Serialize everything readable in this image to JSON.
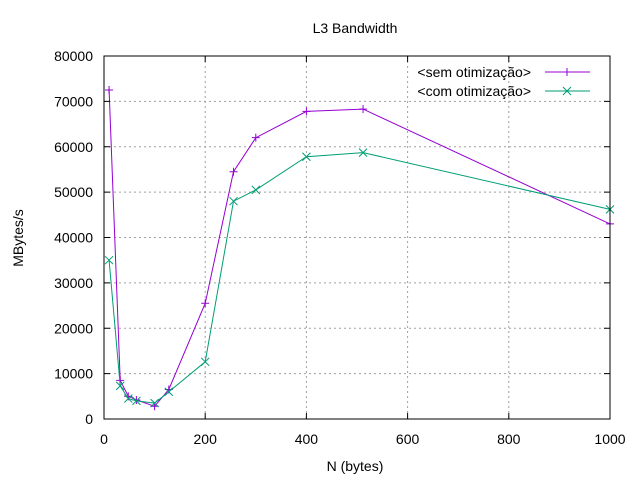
{
  "chart_data": {
    "type": "line",
    "title": "L3 Bandwidth",
    "xlabel": "N (bytes)",
    "ylabel": "MBytes/s",
    "xlim": [
      0,
      1000
    ],
    "ylim": [
      0,
      80000
    ],
    "xticks": [
      0,
      200,
      400,
      600,
      800,
      1000
    ],
    "yticks": [
      0,
      10000,
      20000,
      30000,
      40000,
      50000,
      60000,
      70000,
      80000
    ],
    "grid": true,
    "legend_position": "top-right",
    "series": [
      {
        "name": "<sem otimização>",
        "color": "#9400d3",
        "marker": "plus",
        "x": [
          10,
          32,
          48,
          64,
          100,
          128,
          200,
          256,
          300,
          400,
          512,
          1000
        ],
        "y": [
          72500,
          8500,
          5000,
          4200,
          2800,
          6500,
          25500,
          54500,
          62000,
          67800,
          68300,
          43000
        ]
      },
      {
        "name": "<com otimização>",
        "color": "#009e73",
        "marker": "cross",
        "x": [
          10,
          32,
          48,
          64,
          100,
          128,
          200,
          256,
          300,
          400,
          512,
          1000
        ],
        "y": [
          35000,
          7300,
          4500,
          4000,
          3500,
          6000,
          12600,
          48000,
          50500,
          57800,
          58700,
          46200
        ]
      }
    ]
  }
}
